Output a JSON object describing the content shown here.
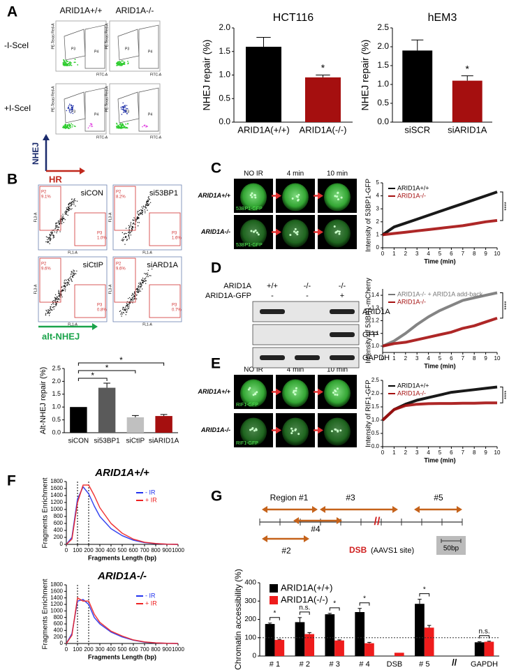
{
  "panel_a": {
    "label": "A",
    "columns": [
      "ARID1A+/+",
      "ARID1A-/-"
    ],
    "rows": [
      "-I-SceI",
      "+I-SceI"
    ],
    "gates": [
      "P3",
      "P4"
    ],
    "x_axis": "FITC-A",
    "y_axis": "PE-Texas Red-A",
    "nhej": "NHEJ",
    "hr": "HR"
  },
  "panel_b": {
    "label": "B",
    "plots": [
      {
        "name": "siCON",
        "p2": "9.1%",
        "p3": "1.0%"
      },
      {
        "name": "si53BP1",
        "p2": "8.2%",
        "p3": "1.6%"
      },
      {
        "name": "siCtIP",
        "p2": "9.6%",
        "p3": "0.8%"
      },
      {
        "name": "siARD1A",
        "p2": "9.6%",
        "p3": "0.7%"
      }
    ],
    "gates": [
      "P2",
      "P3"
    ],
    "x_axis": "FL1-A",
    "y_axis": "FL3-A",
    "arrow": "alt-NHEJ"
  },
  "panel_c": {
    "label": "C",
    "times": [
      "NO IR",
      "4 min",
      "10 min"
    ],
    "rows": [
      "ARID1A+/+",
      "ARID1A-/-"
    ],
    "stain": "53BP1-GFP"
  },
  "panel_d": {
    "label": "D",
    "row_labels": [
      "ARID1A",
      "ARID1A-GFP"
    ],
    "genotypes": [
      "+/+",
      "-/-",
      "-/-"
    ],
    "gfp": [
      "-",
      "-",
      "+"
    ],
    "bands": [
      "ARID1A",
      "GFP",
      "GAPDH"
    ]
  },
  "panel_e": {
    "label": "E",
    "times": [
      "NO IR",
      "4 min",
      "10 min"
    ],
    "rows": [
      "ARID1A+/+",
      "ARID1A-/-"
    ],
    "stain": "RIF1-GFP"
  },
  "panel_f": {
    "label": "F"
  },
  "panel_g": {
    "label": "G",
    "regions": [
      "Region #1",
      "#2",
      "#3",
      "#4",
      "#5"
    ],
    "dsb": "DSB",
    "site": "(AAVS1 site)",
    "break": "//",
    "scale": "50bp"
  },
  "chart_data": [
    {
      "type": "bar",
      "title": "HCT116",
      "ylabel": "NHEJ repair (%)",
      "categories": [
        "ARID1A(+/+)",
        "ARID1A(-/-)"
      ],
      "values": [
        1.6,
        0.95
      ],
      "errors": [
        0.2,
        0.05
      ],
      "colors": [
        "#000000",
        "#a50f0f"
      ],
      "ylim": [
        0,
        2
      ],
      "yticks": [
        {
          "value": 0,
          "label": "0.0"
        },
        0.5,
        {
          "value": 1,
          "label": "1.0"
        },
        1.5,
        {
          "value": 2,
          "label": "2.0"
        }
      ],
      "annotations": [
        null,
        "*"
      ]
    },
    {
      "type": "bar",
      "title": "hEM3",
      "ylabel": "NHEJ repair (%)",
      "categories": [
        "siSCR",
        "siARID1A"
      ],
      "values": [
        1.9,
        1.1
      ],
      "errors": [
        0.28,
        0.13
      ],
      "colors": [
        "#000000",
        "#a50f0f"
      ],
      "ylim": [
        0,
        2.5
      ],
      "yticks": [
        {
          "value": 0,
          "label": "0.0"
        },
        0.5,
        {
          "value": 1,
          "label": "1.0"
        },
        1.5,
        {
          "value": 2,
          "label": "2.0"
        },
        2.5
      ],
      "annotations": [
        null,
        "*"
      ]
    },
    {
      "type": "bar",
      "ylabel": "Alt-NHEJ repair (%)",
      "categories": [
        "siCON",
        "si53BP1",
        "siCtIP",
        "siARID1A"
      ],
      "values": [
        1.0,
        1.75,
        0.6,
        0.65
      ],
      "errors": [
        null,
        0.18,
        0.07,
        0.06
      ],
      "colors": [
        "#000000",
        "#5a5a5a",
        "#c0c0c0",
        "#a50f0f"
      ],
      "ylim": [
        0,
        2.5
      ],
      "yticks": [
        {
          "value": 0,
          "label": "0.0"
        },
        0.5,
        {
          "value": 1,
          "label": "1.0"
        },
        1.5,
        {
          "value": 2,
          "label": "2.0"
        },
        2.5
      ],
      "annotations": [
        null,
        "*",
        "*",
        "*"
      ]
    },
    {
      "type": "line",
      "xlabel": "Time (min)",
      "ylabel": "Intensity of 53BP1-GFP",
      "x": [
        0,
        1,
        2,
        3,
        4,
        5,
        6,
        7,
        8,
        9,
        10
      ],
      "xlim": [
        0,
        10
      ],
      "xticks": [
        0,
        1,
        2,
        3,
        4,
        5,
        6,
        7,
        8,
        9,
        10
      ],
      "ylim": [
        0,
        5
      ],
      "yticks": [
        0,
        1,
        2,
        3,
        4,
        5
      ],
      "series": [
        {
          "name": "ARID1A+/+",
          "color": "#000000",
          "values": [
            1.0,
            1.6,
            1.9,
            2.2,
            2.5,
            2.8,
            3.1,
            3.4,
            3.7,
            4.0,
            4.3
          ]
        },
        {
          "name": "ARID1A-/-",
          "color": "#a50f0f",
          "values": [
            1.0,
            1.1,
            1.2,
            1.3,
            1.4,
            1.5,
            1.6,
            1.7,
            1.85,
            2.0,
            2.1
          ]
        }
      ],
      "annotation": "****"
    },
    {
      "type": "line",
      "xlabel": "Time (min)",
      "ylabel": "Intensity of 53BP1-mCherry",
      "x": [
        0,
        1,
        2,
        3,
        4,
        5,
        6,
        7,
        8,
        9,
        10
      ],
      "xlim": [
        0,
        10
      ],
      "xticks": [
        0,
        1,
        2,
        3,
        4,
        5,
        6,
        7,
        8,
        9,
        10
      ],
      "ylim": [
        0.95,
        1.45
      ],
      "yticks": [
        {
          "value": 1,
          "label": "1.0"
        },
        1.1,
        1.2,
        1.3,
        1.4
      ],
      "series": [
        {
          "name": "ARID1A-/- + ARID1A add-back",
          "color": "#777777",
          "values": [
            1.0,
            1.04,
            1.1,
            1.17,
            1.23,
            1.28,
            1.32,
            1.36,
            1.38,
            1.4,
            1.42
          ]
        },
        {
          "name": "ARID1A-/-",
          "color": "#a50f0f",
          "values": [
            1.0,
            1.02,
            1.03,
            1.05,
            1.07,
            1.09,
            1.11,
            1.14,
            1.16,
            1.19,
            1.22
          ]
        }
      ],
      "annotation": "****"
    },
    {
      "type": "line",
      "xlabel": "Time (min)",
      "ylabel": "Intensity of RIF1-GFP",
      "x": [
        0,
        1,
        2,
        3,
        4,
        5,
        6,
        7,
        8,
        9,
        10
      ],
      "xlim": [
        0,
        10
      ],
      "xticks": [
        0,
        1,
        2,
        3,
        4,
        5,
        6,
        7,
        8,
        9,
        10
      ],
      "ylim": [
        0,
        2.5
      ],
      "yticks": [
        {
          "value": 0,
          "label": "0.0"
        },
        0.5,
        {
          "value": 1,
          "label": "1.0"
        },
        1.5,
        {
          "value": 2,
          "label": "2.0"
        },
        2.5
      ],
      "series": [
        {
          "name": "ARID1A+/+",
          "color": "#000000",
          "values": [
            1.0,
            1.4,
            1.6,
            1.75,
            1.85,
            1.95,
            2.05,
            2.1,
            2.15,
            2.2,
            2.25
          ]
        },
        {
          "name": "ARID1A-/-",
          "color": "#a50f0f",
          "values": [
            1.0,
            1.4,
            1.55,
            1.6,
            1.62,
            1.63,
            1.63,
            1.64,
            1.64,
            1.65,
            1.65
          ]
        }
      ],
      "annotation": "****"
    },
    {
      "type": "line",
      "title": "ARID1A+/+",
      "xlabel": "Fragments Length (bp)",
      "ylabel": "Fragments Enrichment",
      "x": [
        0,
        50,
        100,
        150,
        200,
        250,
        300,
        400,
        500,
        600,
        700,
        800,
        900,
        1000
      ],
      "xlim": [
        0,
        1000
      ],
      "xticks": [
        0,
        100,
        200,
        300,
        400,
        500,
        600,
        700,
        800,
        900,
        1000
      ],
      "ylim": [
        0,
        1800
      ],
      "yticks": [
        0,
        200,
        400,
        600,
        800,
        1000,
        1200,
        1400,
        1600,
        1800
      ],
      "vlines": [
        100,
        200
      ],
      "series": [
        {
          "name": "- IR",
          "color": "#2233ee",
          "values": [
            0,
            200,
            1300,
            1650,
            1450,
            1100,
            800,
            450,
            250,
            120,
            50,
            20,
            5,
            0
          ]
        },
        {
          "name": "+ IR",
          "color": "#ee2222",
          "values": [
            0,
            150,
            1200,
            1700,
            1700,
            1400,
            1050,
            600,
            320,
            150,
            60,
            25,
            5,
            0
          ]
        }
      ]
    },
    {
      "type": "line",
      "title": "ARID1A-/-",
      "xlabel": "Fragments Length (bp)",
      "ylabel": "Fragments Enrichment",
      "x": [
        0,
        50,
        100,
        150,
        200,
        250,
        300,
        400,
        500,
        600,
        700,
        800,
        900,
        1000
      ],
      "xlim": [
        0,
        1000
      ],
      "xticks": [
        0,
        100,
        200,
        300,
        400,
        500,
        600,
        700,
        800,
        900,
        1000
      ],
      "ylim": [
        0,
        1800
      ],
      "yticks": [
        0,
        200,
        400,
        600,
        800,
        1000,
        1200,
        1400,
        1600,
        1800
      ],
      "vlines": [
        100,
        200
      ],
      "series": [
        {
          "name": "- IR",
          "color": "#2233ee",
          "values": [
            0,
            300,
            1300,
            1350,
            1200,
            800,
            600,
            350,
            200,
            100,
            40,
            15,
            5,
            0
          ]
        },
        {
          "name": "+ IR",
          "color": "#ee2222",
          "values": [
            0,
            250,
            1400,
            1300,
            1300,
            900,
            650,
            380,
            230,
            110,
            50,
            20,
            5,
            0
          ]
        }
      ]
    },
    {
      "type": "bar",
      "ylabel": "Chromatin accessibility (%)",
      "categories": [
        "# 1",
        "# 2",
        "# 3",
        "# 4",
        "DSB",
        "# 5",
        null,
        "GAPDH"
      ],
      "series": [
        {
          "name": "ARID1A(+/+)",
          "color": "#000000",
          "values": [
            175,
            185,
            228,
            240,
            null,
            285,
            null,
            75
          ],
          "errors": [
            5,
            25,
            5,
            20,
            null,
            25,
            null,
            3
          ]
        },
        {
          "name": "ARID1A(-/-)",
          "color": "#ee1c1c",
          "values": [
            88,
            120,
            85,
            70,
            18,
            155,
            null,
            78
          ],
          "errors": [
            3,
            8,
            3,
            5,
            null,
            12,
            null,
            3
          ]
        }
      ],
      "ylim": [
        0,
        400
      ],
      "yticks": [
        0,
        100,
        200,
        300,
        400
      ],
      "hline": 100,
      "break_label": "//",
      "annotations": [
        "*",
        "n.s.",
        "*",
        "*",
        null,
        "*",
        null,
        "n.s."
      ]
    }
  ]
}
